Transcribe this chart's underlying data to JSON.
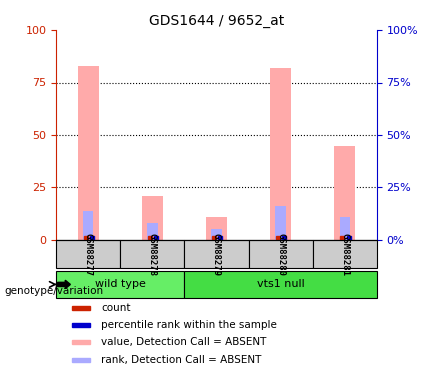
{
  "title": "GDS1644 / 9652_at",
  "samples": [
    "GSM88277",
    "GSM88278",
    "GSM88279",
    "GSM88280",
    "GSM88281"
  ],
  "groups": [
    "wild type",
    "wild type",
    "vts1 null",
    "vts1 null",
    "vts1 null"
  ],
  "group_colors": {
    "wild type": "#66ee66",
    "vts1 null": "#44dd44"
  },
  "pink_bar_heights": [
    83,
    21,
    11,
    82,
    45
  ],
  "blue_bar_heights": [
    14,
    8,
    5,
    16,
    11
  ],
  "ylim": [
    0,
    100
  ],
  "yticks": [
    0,
    25,
    50,
    75,
    100
  ],
  "left_axis_color": "#cc2200",
  "right_axis_color": "#0000cc",
  "bar_width": 0.32,
  "pink_color": "#ffaaaa",
  "blue_color": "#aaaaff",
  "legend_items": [
    {
      "color": "#cc2200",
      "label": "count"
    },
    {
      "color": "#0000cc",
      "label": "percentile rank within the sample"
    },
    {
      "color": "#ffaaaa",
      "label": "value, Detection Call = ABSENT"
    },
    {
      "color": "#aaaaff",
      "label": "rank, Detection Call = ABSENT"
    }
  ],
  "genotype_label": "genotype/variation"
}
